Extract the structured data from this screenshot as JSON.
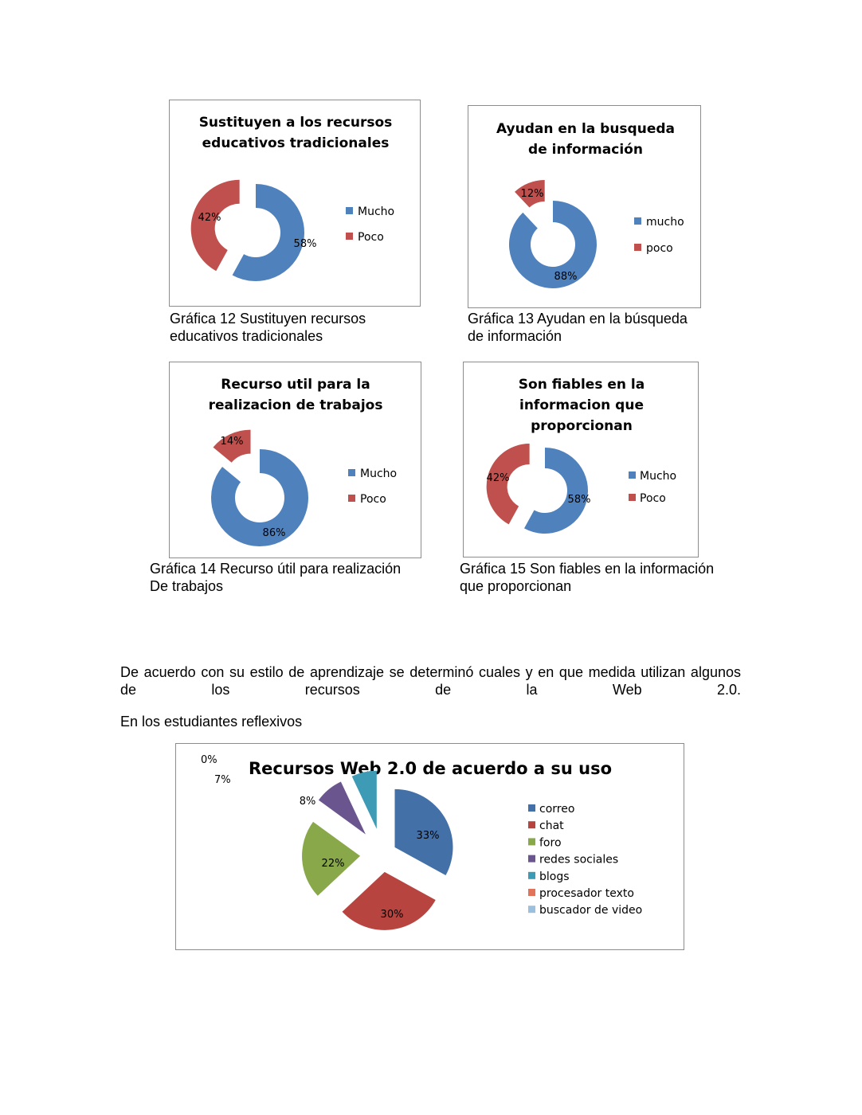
{
  "colors": {
    "blue": "#4f81bd",
    "red": "#c0504d",
    "pie_correo": "#4470a8",
    "pie_chat": "#b84440",
    "pie_foro": "#88a84a",
    "pie_redes": "#6b558e",
    "pie_blogs": "#3d9bb5",
    "pie_procesador": "#e0735a",
    "pie_video": "#9ac0de"
  },
  "captions": {
    "g12": "Gráfica 12 Sustituyen recursos\neducativos tradicionales",
    "g13": "Gráfica 13 Ayudan en la búsqueda\nde información",
    "g14": "Gráfica 14 Recurso útil para realización\n De trabajos",
    "g15": "Gráfica 15 Son fiables en la información\n que proporcionan"
  },
  "paragraph_1": "De acuerdo con su estilo de aprendizaje se determinó cuales y en que medida utilizan algunos de los recursos de la Web 2.0.",
  "paragraph_2": "En los estudiantes reflexivos",
  "chart_data": [
    {
      "type": "doughnut",
      "title": [
        "Sustituyen a los recursos",
        "educativos tradicionales"
      ],
      "categories": [
        "Mucho",
        "Poco"
      ],
      "values": [
        58,
        42
      ],
      "labels": [
        "58%",
        "42%"
      ],
      "legend": "right"
    },
    {
      "type": "doughnut",
      "title": [
        "Ayudan en la busqueda",
        "de información"
      ],
      "categories": [
        "mucho",
        "poco"
      ],
      "values": [
        88,
        12
      ],
      "labels": [
        "88%",
        "12%"
      ],
      "legend": "right"
    },
    {
      "type": "doughnut",
      "title": [
        "Recurso util para la",
        "realizacion de trabajos"
      ],
      "categories": [
        "Mucho",
        "Poco"
      ],
      "values": [
        86,
        14
      ],
      "labels": [
        "86%",
        "14%"
      ],
      "legend": "right"
    },
    {
      "type": "doughnut",
      "title": [
        "Son fiables en la",
        "informacion que",
        "proporcionan"
      ],
      "categories": [
        "Mucho",
        "Poco"
      ],
      "values": [
        58,
        42
      ],
      "labels": [
        "58%",
        "42%"
      ],
      "legend": "right"
    },
    {
      "type": "pie",
      "title": [
        "Recursos Web 2.0 de acuerdo a su uso"
      ],
      "categories": [
        "correo",
        "chat",
        "foro",
        "redes sociales",
        "blogs",
        "procesador texto",
        "buscador de video"
      ],
      "values": [
        33,
        30,
        22,
        8,
        7,
        0,
        0
      ],
      "labels": [
        "33%",
        "30%",
        "22%",
        "8%",
        "7%",
        "0%",
        ""
      ],
      "legend": "right"
    }
  ]
}
